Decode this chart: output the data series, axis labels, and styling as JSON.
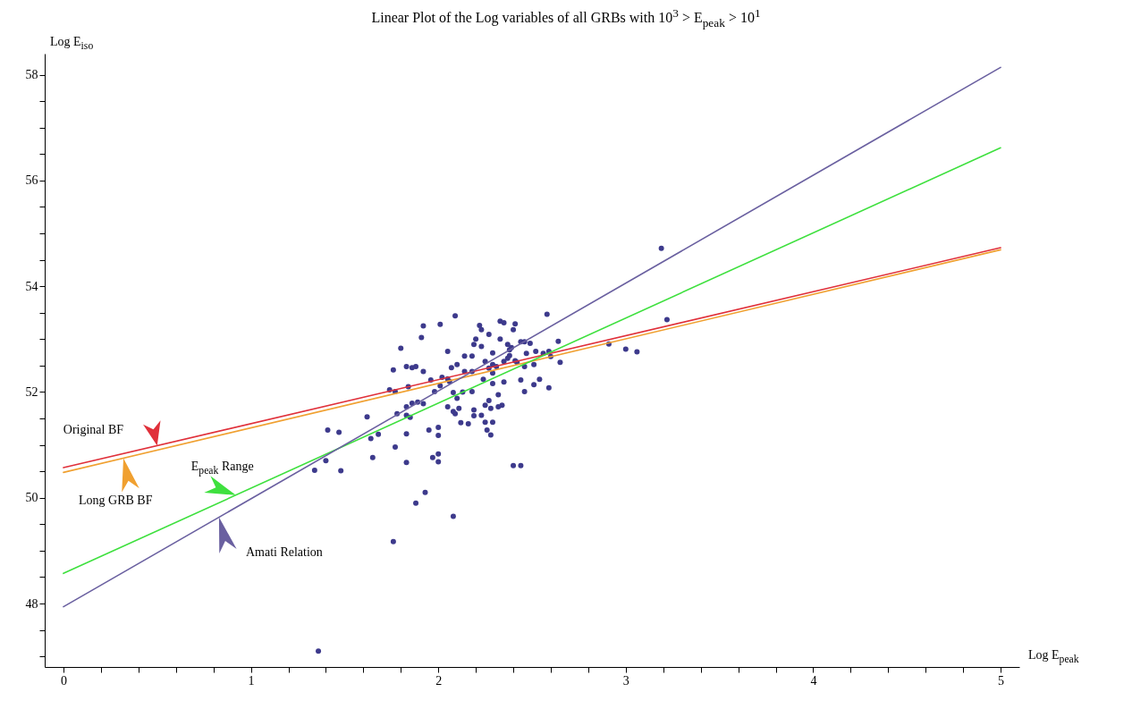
{
  "chart_data": {
    "type": "scatter",
    "title": "Linear Plot of the Log variables of all GRBs with 10$^{3}$ > E$_{peak}$ > 10$^{1}$",
    "xlabel": "Log E$_{peak}$",
    "ylabel": "Log E$_{iso}$",
    "xlim": [
      -0.1,
      5.1
    ],
    "ylim": [
      46.8,
      58.4
    ],
    "xticks": [
      0,
      {
        "value": 0.2,
        "label": null
      },
      {
        "value": 0.4,
        "label": null
      },
      {
        "value": 0.6,
        "label": null
      },
      {
        "value": 0.8,
        "label": null
      },
      1,
      {
        "value": 1.2,
        "label": null
      },
      {
        "value": 1.4,
        "label": null
      },
      {
        "value": 1.6,
        "label": null
      },
      {
        "value": 1.8,
        "label": null
      },
      2,
      {
        "value": 2.2,
        "label": null
      },
      {
        "value": 2.4,
        "label": null
      },
      {
        "value": 2.6,
        "label": null
      },
      {
        "value": 2.8,
        "label": null
      },
      3,
      {
        "value": 3.2,
        "label": null
      },
      {
        "value": 3.4,
        "label": null
      },
      {
        "value": 3.6,
        "label": null
      },
      {
        "value": 3.8,
        "label": null
      },
      4,
      {
        "value": 4.2,
        "label": null
      },
      {
        "value": 4.4,
        "label": null
      },
      {
        "value": 4.6,
        "label": null
      },
      {
        "value": 4.8,
        "label": null
      },
      5
    ],
    "yticks": [
      {
        "value": 47,
        "label": null
      },
      {
        "value": 47.5,
        "label": null
      },
      48,
      {
        "value": 48.5,
        "label": null
      },
      {
        "value": 49,
        "label": null
      },
      {
        "value": 49.5,
        "label": null
      },
      50,
      {
        "value": 50.5,
        "label": null
      },
      {
        "value": 51,
        "label": null
      },
      {
        "value": 51.5,
        "label": null
      },
      52,
      {
        "value": 52.5,
        "label": null
      },
      {
        "value": 53,
        "label": null
      },
      {
        "value": 53.5,
        "label": null
      },
      54,
      {
        "value": 54.5,
        "label": null
      },
      {
        "value": 55,
        "label": null
      },
      {
        "value": 55.5,
        "label": null
      },
      56,
      {
        "value": 56.5,
        "label": null
      },
      {
        "value": 57,
        "label": null
      },
      {
        "value": 57.5,
        "label": null
      },
      58
    ],
    "series": [
      {
        "type": "scatter",
        "color": "#3d3a8c",
        "marker": "circle",
        "x": [
          2.09,
          1.92,
          2.01,
          1.91,
          1.8,
          2.05,
          1.83,
          1.86,
          1.88,
          1.76,
          1.92,
          2.1,
          2.07,
          1.96,
          2.02,
          2.05,
          2.06,
          1.84,
          2.01,
          1.74,
          1.77,
          1.98,
          2.08,
          1.83,
          1.86,
          1.89,
          1.92,
          1.78,
          2.05,
          2.1,
          2.08,
          2.09,
          1.62,
          1.83,
          1.85,
          2.12,
          1.41,
          1.47,
          1.95,
          2.0,
          2.0,
          1.64,
          1.68,
          1.83,
          1.77,
          1.65,
          2.0,
          1.97,
          2.0,
          1.83,
          1.4,
          1.34,
          1.93,
          1.88,
          2.08,
          1.76,
          2.58,
          2.33,
          2.35,
          2.41,
          2.4,
          2.22,
          2.23,
          2.27,
          2.2,
          2.33,
          2.19,
          2.23,
          2.37,
          2.44,
          2.46,
          2.49,
          2.39,
          2.38,
          2.64,
          2.47,
          2.52,
          2.29,
          2.56,
          2.59,
          2.6,
          2.14,
          2.18,
          2.38,
          2.37,
          2.25,
          2.35,
          2.41,
          2.42,
          2.29,
          2.31,
          2.27,
          2.46,
          2.51,
          2.14,
          2.18,
          2.29,
          2.65,
          2.24,
          2.44,
          2.54,
          2.51,
          2.59,
          2.35,
          2.29,
          2.18,
          2.13,
          2.46,
          2.32,
          2.27,
          2.25,
          2.28,
          2.32,
          2.34,
          2.11,
          2.19,
          2.19,
          2.23,
          2.25,
          2.29,
          2.16,
          2.26,
          2.28,
          2.4,
          2.44,
          3.19,
          3.22,
          2.91,
          3.0,
          3.06,
          1.48,
          1.36
        ],
        "values": [
          53.44,
          53.25,
          53.28,
          53.03,
          52.83,
          52.77,
          52.48,
          52.46,
          52.48,
          52.42,
          52.39,
          52.52,
          52.46,
          52.23,
          52.28,
          52.25,
          52.2,
          52.1,
          52.12,
          52.04,
          52.01,
          52.01,
          51.99,
          51.72,
          51.79,
          51.81,
          51.78,
          51.59,
          51.72,
          51.88,
          51.63,
          51.59,
          51.53,
          51.56,
          51.52,
          51.42,
          51.28,
          51.24,
          51.28,
          51.33,
          51.18,
          51.12,
          51.2,
          51.21,
          50.96,
          50.76,
          50.83,
          50.76,
          50.68,
          50.67,
          50.7,
          50.52,
          50.1,
          49.9,
          49.65,
          49.17,
          53.47,
          53.34,
          53.31,
          53.29,
          53.18,
          53.26,
          53.18,
          53.09,
          53.0,
          53.0,
          52.9,
          52.86,
          52.9,
          52.95,
          52.95,
          52.92,
          52.84,
          52.8,
          52.96,
          52.73,
          52.77,
          52.74,
          52.73,
          52.77,
          52.67,
          52.68,
          52.68,
          52.69,
          52.64,
          52.58,
          52.58,
          52.59,
          52.56,
          52.52,
          52.48,
          52.45,
          52.48,
          52.52,
          52.39,
          52.39,
          52.36,
          52.56,
          52.24,
          52.23,
          52.24,
          52.14,
          52.08,
          52.19,
          52.16,
          52.01,
          52.0,
          52.01,
          51.95,
          51.84,
          51.75,
          51.69,
          51.72,
          51.75,
          51.69,
          51.66,
          51.55,
          51.56,
          51.43,
          51.43,
          51.4,
          51.28,
          51.19,
          50.61,
          50.61,
          54.72,
          53.37,
          52.91,
          52.81,
          52.76,
          50.51,
          47.1
        ]
      },
      {
        "type": "line",
        "name": "Original BF",
        "color": "#e0303a",
        "x": [
          0,
          5
        ],
        "values": [
          50.57,
          54.73
        ]
      },
      {
        "type": "line",
        "name": "Long GRB BF",
        "color": "#f0a030",
        "x": [
          0,
          5
        ],
        "values": [
          50.48,
          54.69
        ]
      },
      {
        "type": "line",
        "name": "E$_{peak}$ Range",
        "color": "#3ee03e",
        "x": [
          0,
          5
        ],
        "values": [
          48.57,
          56.62
        ]
      },
      {
        "type": "line",
        "name": "Amati Relation",
        "color": "#6a60a0",
        "x": [
          0,
          5
        ],
        "values": [
          47.94,
          58.14
        ]
      }
    ]
  }
}
